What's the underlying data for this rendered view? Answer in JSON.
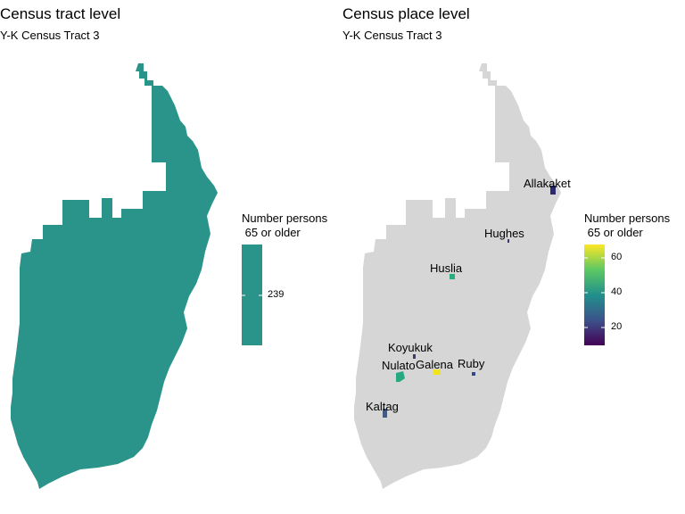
{
  "left_panel": {
    "title": "Census tract level",
    "subtitle": "Y-K Census Tract 3",
    "fill_color": "#2A938A",
    "legend": {
      "title": "Number persons\n 65 or older",
      "tick": "239"
    }
  },
  "right_panel": {
    "title": "Census place level",
    "subtitle": "Y-K Census Tract 3",
    "base_color": "#D6D6D6",
    "legend": {
      "title": "Number persons\n 65 or older",
      "ticks": [
        "60",
        "40",
        "20"
      ],
      "scale_range": [
        8,
        70
      ],
      "palette": [
        "#440154",
        "#3B528B",
        "#21908C",
        "#5DC863",
        "#FDE725"
      ]
    },
    "places": [
      {
        "name": "Allakaket",
        "value": 18,
        "color": "#2E2A6E"
      },
      {
        "name": "Hughes",
        "value": 12,
        "color": "#3A3A6A"
      },
      {
        "name": "Huslia",
        "value": 47,
        "color": "#2BAE7E"
      },
      {
        "name": "Koyukuk",
        "value": 12,
        "color": "#3A3A70"
      },
      {
        "name": "Nulato",
        "value": 45,
        "color": "#27A883"
      },
      {
        "name": "Galena",
        "value": 70,
        "color": "#F0E31F"
      },
      {
        "name": "Ruby",
        "value": 22,
        "color": "#33478A"
      },
      {
        "name": "Kaltag",
        "value": 25,
        "color": "#3C5B92"
      }
    ]
  }
}
